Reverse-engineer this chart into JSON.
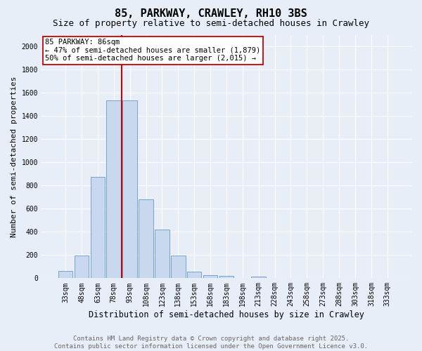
{
  "title": "85, PARKWAY, CRAWLEY, RH10 3BS",
  "subtitle": "Size of property relative to semi-detached houses in Crawley",
  "xlabel": "Distribution of semi-detached houses by size in Crawley",
  "ylabel": "Number of semi-detached properties",
  "bar_labels": [
    "33sqm",
    "48sqm",
    "63sqm",
    "78sqm",
    "93sqm",
    "108sqm",
    "123sqm",
    "138sqm",
    "153sqm",
    "168sqm",
    "183sqm",
    "198sqm",
    "213sqm",
    "228sqm",
    "243sqm",
    "258sqm",
    "273sqm",
    "288sqm",
    "303sqm",
    "318sqm",
    "333sqm"
  ],
  "bar_values": [
    65,
    195,
    875,
    1535,
    1535,
    680,
    420,
    195,
    55,
    25,
    20,
    5,
    15,
    0,
    0,
    0,
    0,
    0,
    0,
    0,
    0
  ],
  "bar_color": "#c8d8ee",
  "bar_edge_color": "#6699cc",
  "vline_x_index": 3,
  "vline_color": "#cc0000",
  "vline_lw": 1.5,
  "ylim": [
    0,
    2100
  ],
  "yticks": [
    0,
    200,
    400,
    600,
    800,
    1000,
    1200,
    1400,
    1600,
    1800,
    2000
  ],
  "annotation_title": "85 PARKWAY: 86sqm",
  "annotation_line1": "← 47% of semi-detached houses are smaller (1,879)",
  "annotation_line2": "50% of semi-detached houses are larger (2,015) →",
  "annotation_box_facecolor": "#ffffff",
  "annotation_box_edgecolor": "#cc0000",
  "footer_line1": "Contains HM Land Registry data © Crown copyright and database right 2025.",
  "footer_line2": "Contains public sector information licensed under the Open Government Licence v3.0.",
  "bg_color": "#e8eef8",
  "grid_color": "#ffffff",
  "title_fontsize": 11,
  "subtitle_fontsize": 9,
  "tick_fontsize": 7,
  "ylabel_fontsize": 8,
  "xlabel_fontsize": 8.5,
  "footer_fontsize": 6.5,
  "annotation_fontsize": 7.5
}
